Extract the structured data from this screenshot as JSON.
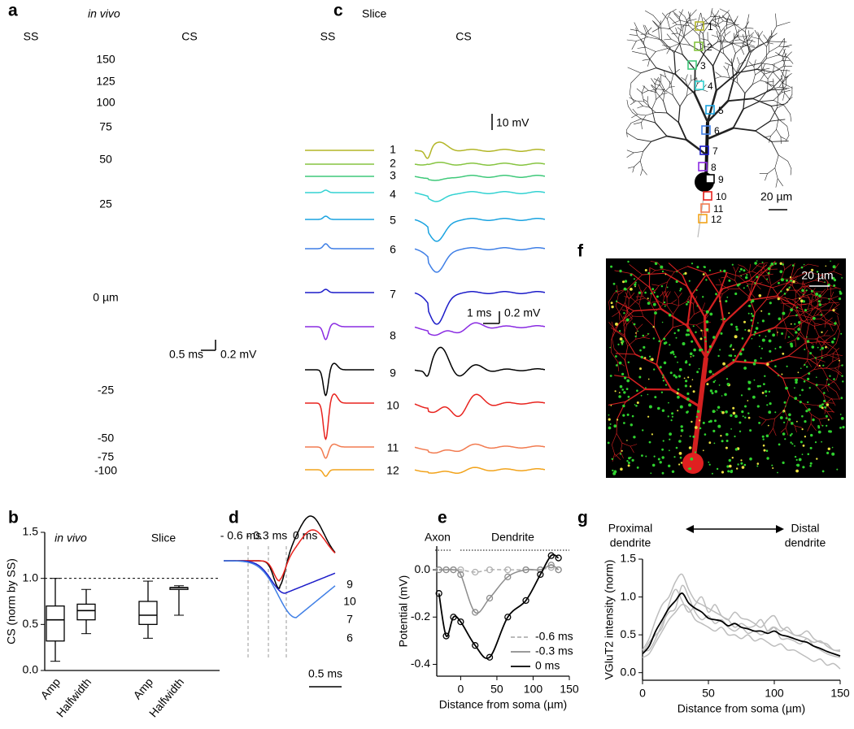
{
  "panel_labels": [
    "a",
    "b",
    "c",
    "d",
    "e",
    "f",
    "g"
  ],
  "panel_a": {
    "title": "in vivo",
    "columns": [
      "SS",
      "CS"
    ],
    "depths": [
      "150",
      "125",
      "100",
      "75",
      "50",
      "25",
      "0 µm",
      "-25",
      "-50",
      "-75",
      "-100"
    ],
    "scalebar": [
      "0.5 ms",
      "0.2 mV"
    ]
  },
  "panel_c": {
    "title": "Slice",
    "columns": [
      "SS",
      "CS"
    ],
    "scalebar_top": "10 mV",
    "sites": [
      "1",
      "2",
      "3",
      "4",
      "5",
      "6",
      "7",
      "8",
      "9",
      "10",
      "11",
      "12"
    ],
    "site_colors": [
      "#b3b627",
      "#86c440",
      "#3fc97a",
      "#33d2d2",
      "#1aa3e0",
      "#3f7fe6",
      "#1c1cc9",
      "#8a2be2",
      "#000000",
      "#e8231e",
      "#f27b50",
      "#f2a31b"
    ],
    "scalebar": [
      "1 ms",
      "0.2 mV"
    ]
  },
  "image_panel": {
    "scalebar": "20 µm"
  },
  "panel_f": {
    "scalebar": "20 µm"
  },
  "panel_d": {
    "labels": [
      "- 0.6 ms",
      "- 0.3 ms",
      "0 ms"
    ],
    "traces": [
      "9",
      "10",
      "7",
      "6"
    ],
    "scalebar": "0.5 ms"
  },
  "chart_data": [
    {
      "type": "box",
      "ylabel": "CS (norm by SS)",
      "ylim": [
        0,
        1.5
      ],
      "yticks": [
        {
          "value": 0,
          "label": "0.0"
        },
        {
          "value": 0.5,
          "label": "0.5"
        },
        {
          "value": 1,
          "label": "1.0"
        },
        {
          "value": 1.5,
          "label": "1.5"
        }
      ],
      "hline": 1,
      "groups": [
        {
          "label": "in vivo",
          "italic": true,
          "categories": [
            "Amp",
            "Halfwidth"
          ],
          "boxes": [
            {
              "min": 0.1,
              "q1": 0.32,
              "median": 0.55,
              "q3": 0.7,
              "max": 1.0
            },
            {
              "min": 0.4,
              "q1": 0.55,
              "median": 0.65,
              "q3": 0.72,
              "max": 0.88
            }
          ]
        },
        {
          "label": "Slice",
          "italic": false,
          "categories": [
            "Amp",
            "Halfwidth"
          ],
          "boxes": [
            {
              "min": 0.35,
              "q1": 0.5,
              "median": 0.6,
              "q3": 0.75,
              "max": 0.97
            },
            {
              "min": 0.6,
              "q1": 0.88,
              "median": 0.9,
              "q3": 0.9,
              "max": 0.92
            }
          ]
        }
      ]
    },
    {
      "type": "line",
      "xlabel": "Distance from soma (µm)",
      "ylabel": "Potential (mV)",
      "annotations": [
        "Axon",
        "Dendrite"
      ],
      "markers": true,
      "legend": "lower right",
      "xlim": [
        -33,
        150
      ],
      "xticks": [
        0,
        50,
        100,
        150
      ],
      "ylim": [
        -0.45,
        0.1
      ],
      "yticks": [
        {
          "value": 0,
          "label": "0.0"
        },
        {
          "value": -0.2,
          "label": "-0.2"
        },
        {
          "value": -0.4,
          "label": "-0.4"
        }
      ],
      "x": [
        -30,
        -20,
        -10,
        0,
        20,
        40,
        65,
        90,
        110,
        125,
        135
      ],
      "series": [
        {
          "name": "-0.6 ms",
          "color": "#b0b0b0",
          "dash": true,
          "values": [
            0,
            0,
            0,
            0,
            -0.01,
            0,
            0,
            0,
            0,
            0.01,
            0
          ]
        },
        {
          "name": "-0.3 ms",
          "color": "#8c8c8c",
          "values": [
            0,
            0,
            0,
            -0.02,
            -0.18,
            -0.12,
            -0.03,
            0,
            0,
            0.02,
            0
          ]
        },
        {
          "name": "0 ms",
          "color": "#000000",
          "values": [
            -0.1,
            -0.28,
            -0.2,
            -0.22,
            -0.32,
            -0.37,
            -0.2,
            -0.13,
            -0.02,
            0.06,
            0.05
          ]
        }
      ]
    },
    {
      "type": "line",
      "xlabel": "Distance from soma (µm)",
      "ylabel": "VGluT2 intensity (norm)",
      "annotations": [
        [
          "Proximal",
          "dendrite"
        ],
        [
          "Distal",
          "dendrite"
        ]
      ],
      "markers": false,
      "xlim": [
        0,
        150
      ],
      "xticks": [
        0,
        50,
        100,
        150
      ],
      "ylim": [
        -0.1,
        1.5
      ],
      "yticks": [
        {
          "value": 0,
          "label": "0.0"
        },
        {
          "value": 0.5,
          "label": "0.5"
        },
        {
          "value": 1,
          "label": "1.0"
        },
        {
          "value": 1.5,
          "label": "1.5"
        }
      ],
      "x": [
        0,
        5,
        10,
        15,
        20,
        25,
        30,
        35,
        40,
        45,
        50,
        55,
        60,
        65,
        70,
        75,
        80,
        85,
        90,
        95,
        100,
        105,
        110,
        115,
        120,
        125,
        130,
        135,
        140,
        145,
        150
      ],
      "series": [
        {
          "color": "#bdbdbd",
          "values": [
            0.3,
            0.45,
            0.7,
            0.9,
            1.0,
            1.2,
            1.3,
            1.1,
            0.95,
            0.9,
            0.85,
            0.8,
            0.75,
            0.7,
            0.8,
            0.72,
            0.7,
            0.65,
            0.6,
            0.7,
            0.75,
            0.6,
            0.55,
            0.5,
            0.48,
            0.45,
            0.4,
            0.42,
            0.35,
            0.3,
            0.28
          ]
        },
        {
          "color": "#bdbdbd",
          "values": [
            0.2,
            0.25,
            0.4,
            0.55,
            0.7,
            0.8,
            0.9,
            0.85,
            0.7,
            0.65,
            0.6,
            0.55,
            0.6,
            0.5,
            0.5,
            0.45,
            0.5,
            0.42,
            0.45,
            0.4,
            0.35,
            0.38,
            0.3,
            0.3,
            0.25,
            0.2,
            0.15,
            0.18,
            0.1,
            0.12,
            0.05
          ]
        },
        {
          "color": "#bdbdbd",
          "values": [
            0.25,
            0.4,
            0.5,
            0.6,
            0.9,
            1.1,
            0.95,
            0.8,
            0.9,
            1.0,
            0.8,
            0.9,
            0.75,
            0.7,
            0.6,
            0.65,
            0.6,
            0.62,
            0.7,
            0.55,
            0.6,
            0.55,
            0.6,
            0.5,
            0.5,
            0.55,
            0.45,
            0.4,
            0.38,
            0.3,
            0.3
          ]
        },
        {
          "color": "#bdbdbd",
          "values": [
            0.3,
            0.3,
            0.45,
            0.65,
            0.8,
            0.85,
            1.15,
            1.0,
            0.8,
            0.7,
            0.75,
            0.65,
            0.7,
            0.6,
            0.55,
            0.6,
            0.52,
            0.55,
            0.5,
            0.55,
            0.6,
            0.45,
            0.45,
            0.42,
            0.38,
            0.45,
            0.35,
            0.3,
            0.25,
            0.22,
            0.2
          ]
        },
        {
          "color": "#000000",
          "values": [
            0.25,
            0.35,
            0.55,
            0.7,
            0.85,
            0.95,
            1.05,
            0.92,
            0.85,
            0.8,
            0.72,
            0.7,
            0.68,
            0.62,
            0.65,
            0.6,
            0.58,
            0.55,
            0.55,
            0.52,
            0.55,
            0.5,
            0.48,
            0.45,
            0.42,
            0.4,
            0.35,
            0.32,
            0.28,
            0.25,
            0.22
          ]
        }
      ]
    }
  ]
}
